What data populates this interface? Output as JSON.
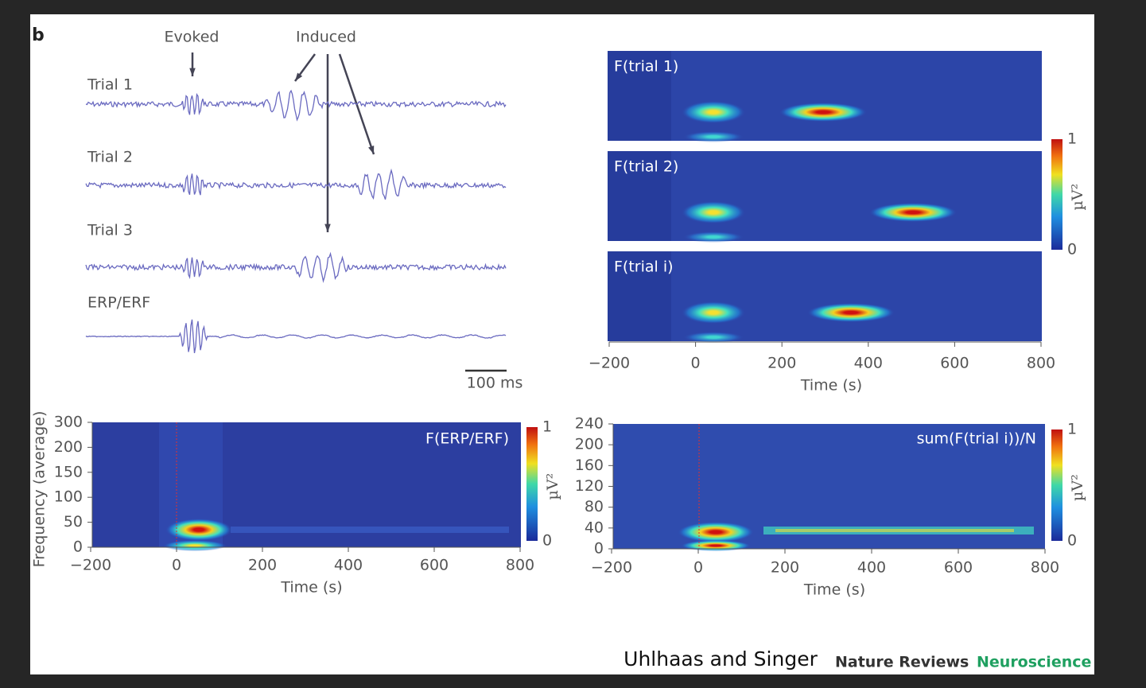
{
  "panel_label": "b",
  "traces": {
    "evoked_label": "Evoked",
    "induced_label": "Induced",
    "rows": [
      "Trial 1",
      "Trial 2",
      "Trial 3",
      "ERP/ERF"
    ],
    "scale_bar": "100 ms"
  },
  "trial_maps": {
    "panels": [
      "F(trial 1)",
      "F(trial 2)",
      "F(trial i)"
    ],
    "xticks": [
      "−200",
      0,
      200,
      400,
      600,
      800
    ],
    "xlabel": "Time (s)",
    "colorbar": {
      "max": 1,
      "min": 0,
      "unit": "µV²"
    }
  },
  "erp_map": {
    "title": "F(ERP/ERF)",
    "ylabel": "Frequency (average)",
    "yticks": [
      0,
      50,
      100,
      150,
      200,
      300
    ],
    "xticks": [
      "−200",
      0,
      200,
      400,
      600,
      800
    ],
    "xlabel": "Time (s)",
    "colorbar": {
      "max": 1,
      "min": 0,
      "unit": "µV²"
    }
  },
  "sum_map": {
    "title": "sum(F(trial i))/N",
    "yticks": [
      0,
      40,
      80,
      120,
      160,
      200,
      240
    ],
    "xticks": [
      "−200",
      0,
      200,
      400,
      600,
      800
    ],
    "xlabel": "Time (s)",
    "colorbar": {
      "max": 1,
      "min": 0,
      "unit": "µV²"
    }
  },
  "footer": {
    "authors": "Uhlhaas and Singer",
    "journal": "Nature Reviews",
    "section": "Neuroscience"
  }
}
